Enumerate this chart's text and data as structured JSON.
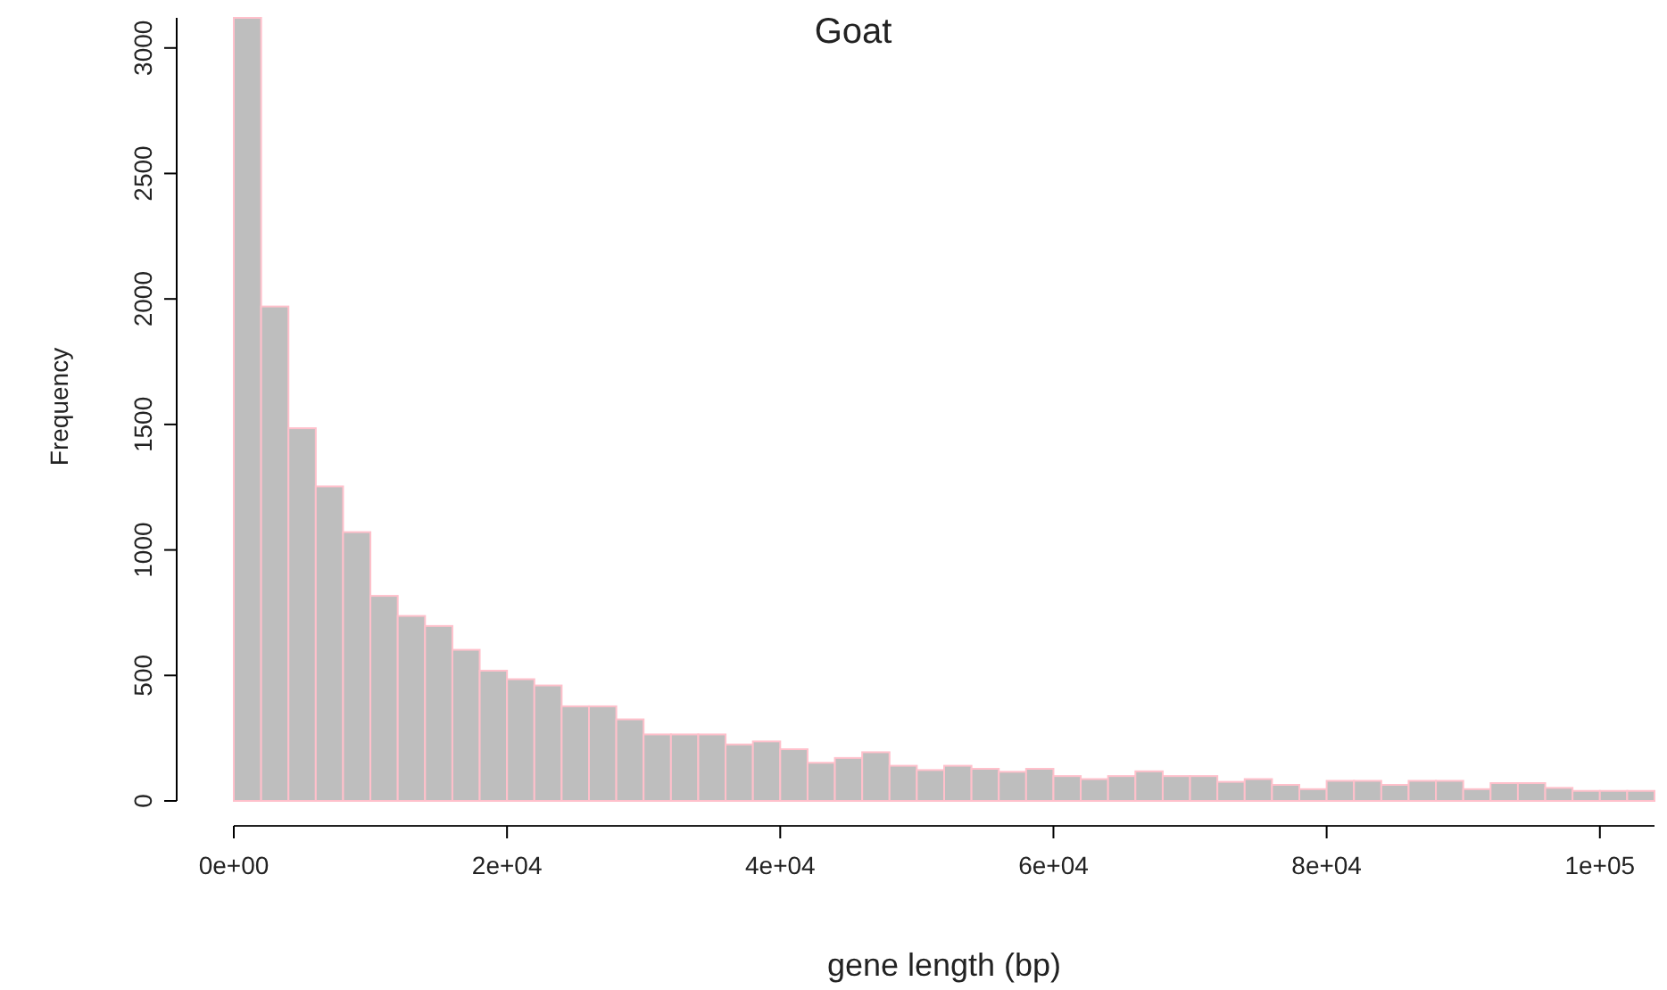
{
  "chart_data": {
    "type": "histogram",
    "title": "Goat",
    "xlabel": "gene length (bp)",
    "ylabel": "Frequency",
    "bins": [
      0,
      2000,
      4000,
      6000,
      8000,
      10000,
      12000,
      14000,
      16000,
      18000,
      20000,
      22000,
      24000,
      26000,
      28000,
      30000,
      32000,
      34000,
      36000,
      38000,
      40000,
      42000,
      44000,
      46000,
      48000,
      50000,
      52000,
      54000,
      56000,
      58000,
      60000,
      62000,
      64000,
      66000,
      68000,
      70000,
      72000,
      74000,
      76000,
      78000,
      80000,
      82000,
      84000,
      86000,
      88000,
      90000,
      92000,
      94000,
      96000,
      98000,
      100000,
      102000,
      104000
    ],
    "values": [
      3120,
      1970,
      1485,
      1253,
      1071,
      817,
      737,
      697,
      602,
      519,
      485,
      460,
      377,
      377,
      325,
      265,
      265,
      265,
      225,
      237,
      206,
      152,
      171,
      194,
      140,
      123,
      140,
      128,
      116,
      128,
      99,
      87,
      99,
      118,
      99,
      99,
      76,
      87,
      64,
      47,
      80,
      80,
      64,
      80,
      80,
      47,
      71,
      71,
      52,
      40,
      40,
      40
    ],
    "color": "#bebebe",
    "xlim": [
      0,
      104000
    ],
    "xticks": [
      {
        "value": 0,
        "label": "0e+00"
      },
      {
        "value": 20000,
        "label": "2e+04"
      },
      {
        "value": 40000,
        "label": "4e+04"
      },
      {
        "value": 60000,
        "label": "6e+04"
      },
      {
        "value": 80000,
        "label": "8e+04"
      },
      {
        "value": 100000,
        "label": "1e+05"
      }
    ],
    "ylim": [
      0,
      3120
    ],
    "yticks": [
      0,
      500,
      1000,
      1500,
      2000,
      2500,
      3000
    ],
    "grid": false
  }
}
